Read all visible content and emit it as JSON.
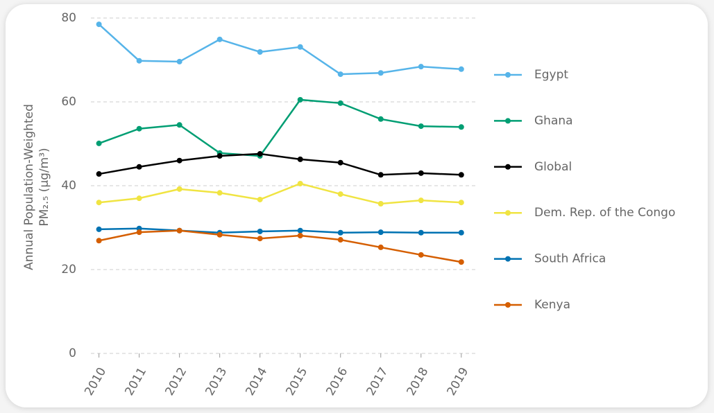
{
  "chart_data": {
    "type": "line",
    "y_label": [
      "Annual Population-Weighted",
      "PM₂.₅ (µg/m³)"
    ],
    "x": [
      2010,
      2011,
      2012,
      2013,
      2014,
      2015,
      2016,
      2017,
      2018,
      2019
    ],
    "xlim": [
      2009.8,
      2019.4
    ],
    "xticks": [
      2010,
      2011,
      2012,
      2013,
      2014,
      2015,
      2016,
      2017,
      2018,
      2019
    ],
    "ylim": [
      0,
      80
    ],
    "yticks": [
      0,
      20,
      40,
      60,
      80
    ],
    "grid": true,
    "legend": "right",
    "series": [
      {
        "name": "Egypt",
        "color": "#56b4e9",
        "values": [
          78.5,
          69.8,
          69.6,
          74.9,
          71.9,
          73.1,
          66.6,
          66.9,
          68.4,
          67.8
        ]
      },
      {
        "name": "Ghana",
        "color": "#009e73",
        "values": [
          50.1,
          53.6,
          54.5,
          47.8,
          47.1,
          60.5,
          59.7,
          55.9,
          54.2,
          54.0
        ]
      },
      {
        "name": "Global",
        "color": "#000000",
        "values": [
          42.8,
          44.5,
          46.0,
          47.1,
          47.6,
          46.3,
          45.5,
          42.6,
          43.0,
          42.6
        ]
      },
      {
        "name": "Dem. Rep. of the Congo",
        "color": "#f0e442",
        "values": [
          36.0,
          37.0,
          39.2,
          38.3,
          36.7,
          40.5,
          38.0,
          35.7,
          36.5,
          36.0
        ]
      },
      {
        "name": "South Africa",
        "color": "#0072b2",
        "values": [
          29.6,
          29.8,
          29.3,
          28.8,
          29.1,
          29.3,
          28.8,
          28.9,
          28.8,
          28.8
        ]
      },
      {
        "name": "Kenya",
        "color": "#d55e00",
        "values": [
          26.9,
          28.9,
          29.3,
          28.3,
          27.4,
          28.1,
          27.1,
          25.3,
          23.5,
          21.8
        ]
      }
    ]
  }
}
